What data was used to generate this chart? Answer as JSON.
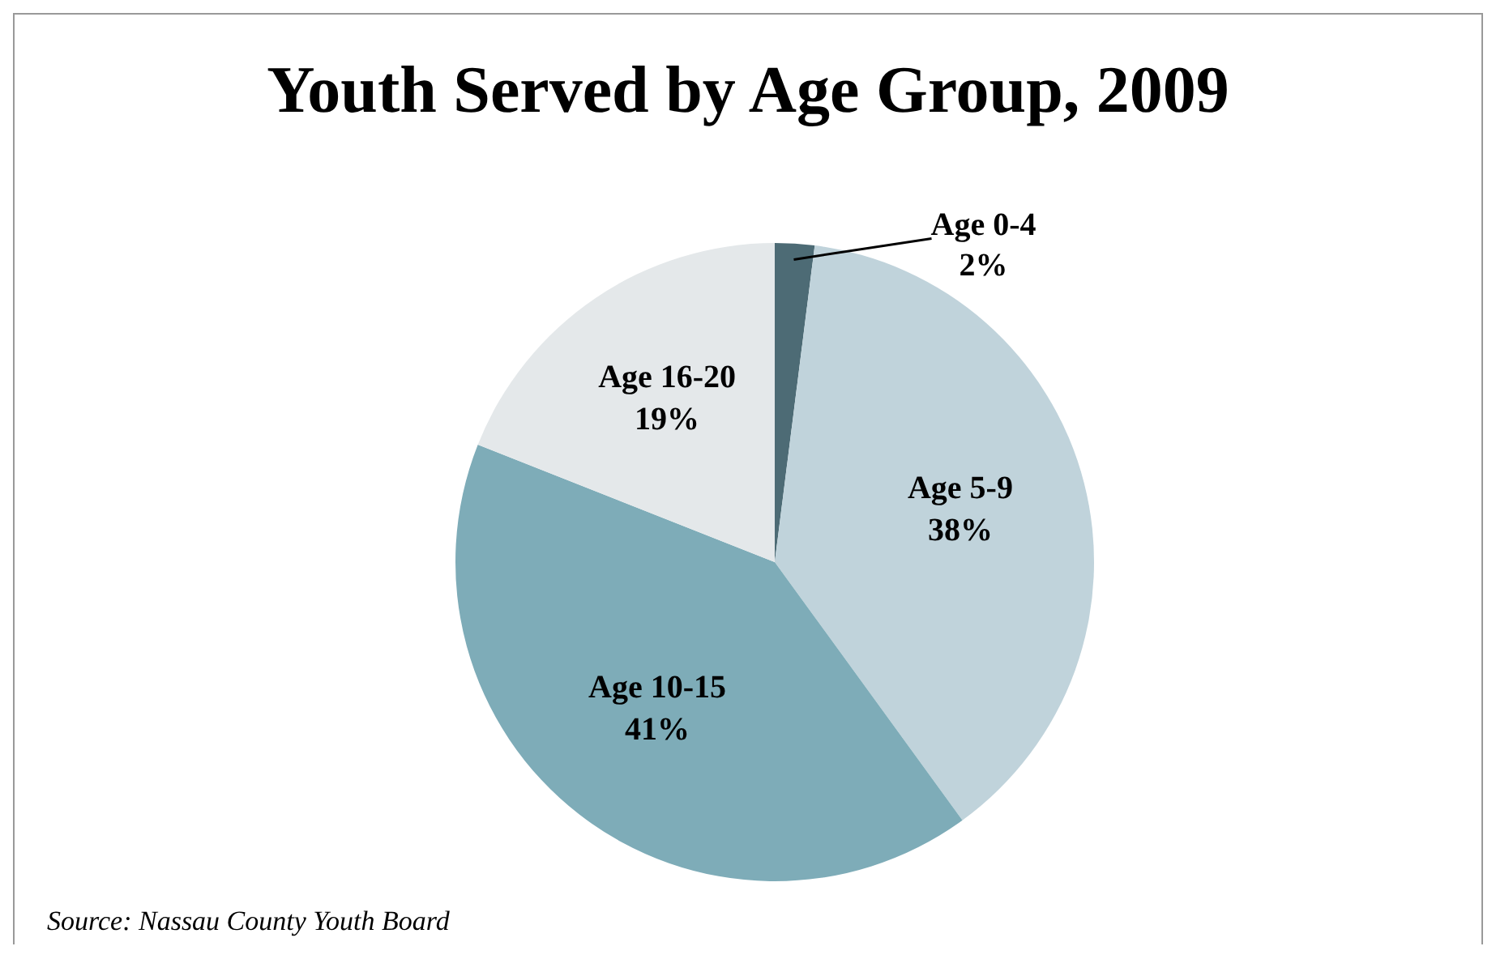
{
  "chart_data": {
    "type": "pie",
    "title": "Youth Served by Age Group, 2009",
    "categories": [
      "Age 0-4",
      "Age 5-9",
      "Age 10-15",
      "Age 16-20"
    ],
    "values": [
      2,
      38,
      41,
      19
    ],
    "value_labels": [
      "2%",
      "38%",
      "41%",
      "19%"
    ],
    "colors": [
      "#4d6b75",
      "#c0d3db",
      "#7eacb8",
      "#e4e8ea"
    ],
    "annotations": [
      "Source: Nassau County Youth Board"
    ]
  }
}
